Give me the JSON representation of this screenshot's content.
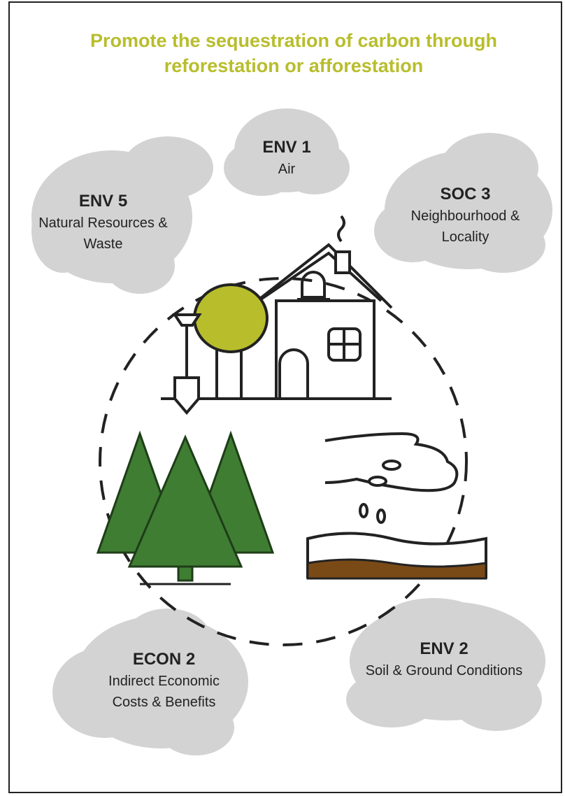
{
  "title": "Promote the sequestration of carbon through reforestation or afforestation",
  "nodes": [
    {
      "code": "ENV 1",
      "label": "Air"
    },
    {
      "code": "SOC 3",
      "label": "Neighbourhood & Locality"
    },
    {
      "code": "ENV 5",
      "label": "Natural Resources & Waste"
    },
    {
      "code": "ECON 2",
      "label": "Indirect Economic Costs & Benefits"
    },
    {
      "code": "ENV 2",
      "label": "Soil & Ground Conditions"
    }
  ]
}
